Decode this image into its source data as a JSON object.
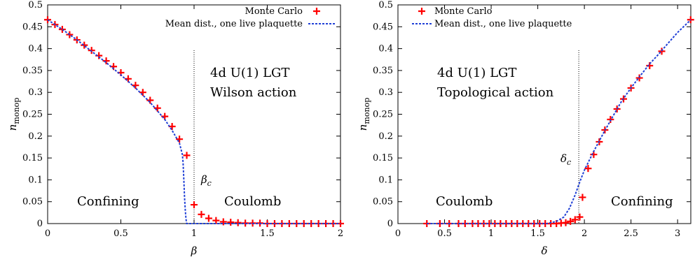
{
  "chart_data": [
    {
      "type": "line",
      "xlabel": "β",
      "ylabel": "n_monop",
      "xlim": [
        0,
        2
      ],
      "ylim": [
        0,
        0.5
      ],
      "x_ticks": [
        "0",
        "0.5",
        "1",
        "1.5",
        "2"
      ],
      "y_ticks": [
        "0",
        "0.05",
        "0.1",
        "0.15",
        "0.2",
        "0.25",
        "0.3",
        "0.35",
        "0.4",
        "0.45",
        "0.5"
      ],
      "grid": false,
      "legend_position": "top-right",
      "legend": [
        "Monte Carlo",
        "Mean dist., one live plaquette"
      ],
      "annotations": {
        "model_line1": "4d U(1) LGT",
        "model_line2": "Wilson action",
        "phase_left": "Confining",
        "phase_right": "Coulomb",
        "critical_label": "β_c"
      },
      "critical_x": 1.0,
      "series": [
        {
          "name": "Monte Carlo",
          "style": "markers",
          "color": "#ff0000",
          "points": [
            [
              0.0,
              0.466
            ],
            [
              0.05,
              0.455
            ],
            [
              0.1,
              0.444
            ],
            [
              0.15,
              0.432
            ],
            [
              0.2,
              0.42
            ],
            [
              0.25,
              0.408
            ],
            [
              0.3,
              0.396
            ],
            [
              0.35,
              0.384
            ],
            [
              0.4,
              0.372
            ],
            [
              0.45,
              0.359
            ],
            [
              0.5,
              0.345
            ],
            [
              0.55,
              0.331
            ],
            [
              0.6,
              0.316
            ],
            [
              0.65,
              0.3
            ],
            [
              0.7,
              0.282
            ],
            [
              0.75,
              0.264
            ],
            [
              0.8,
              0.245
            ],
            [
              0.85,
              0.222
            ],
            [
              0.9,
              0.193
            ],
            [
              0.95,
              0.156
            ],
            [
              1.0,
              0.043
            ],
            [
              1.05,
              0.021
            ],
            [
              1.1,
              0.012
            ],
            [
              1.15,
              0.007
            ],
            [
              1.2,
              0.004
            ],
            [
              1.25,
              0.003
            ],
            [
              1.3,
              0.002
            ],
            [
              1.35,
              0.001
            ],
            [
              1.4,
              0.001
            ],
            [
              1.45,
              0.001
            ],
            [
              1.5,
              0.0
            ],
            [
              1.55,
              0.0
            ],
            [
              1.6,
              0.0
            ],
            [
              1.65,
              0.0
            ],
            [
              1.7,
              0.0
            ],
            [
              1.75,
              0.0
            ],
            [
              1.8,
              0.0
            ],
            [
              1.85,
              0.0
            ],
            [
              1.9,
              0.0
            ],
            [
              1.95,
              0.0
            ],
            [
              2.0,
              0.0
            ]
          ]
        },
        {
          "name": "Mean dist., one live plaquette",
          "style": "dotted-line",
          "color": "#1f3fd6",
          "points": [
            [
              0.0,
              0.466
            ],
            [
              0.1,
              0.444
            ],
            [
              0.2,
              0.42
            ],
            [
              0.3,
              0.394
            ],
            [
              0.4,
              0.368
            ],
            [
              0.5,
              0.34
            ],
            [
              0.6,
              0.31
            ],
            [
              0.7,
              0.277
            ],
            [
              0.8,
              0.238
            ],
            [
              0.85,
              0.213
            ],
            [
              0.9,
              0.184
            ],
            [
              0.92,
              0.158
            ],
            [
              0.925,
              0.14
            ],
            [
              0.93,
              0.1
            ],
            [
              0.935,
              0.06
            ],
            [
              0.94,
              0.03
            ],
            [
              0.945,
              0.01
            ],
            [
              0.95,
              0.0
            ],
            [
              2.0,
              0.0
            ]
          ]
        }
      ]
    },
    {
      "type": "line",
      "xlabel": "δ",
      "ylabel": "n_monop",
      "xlim": [
        0,
        3.1416
      ],
      "ylim": [
        0,
        0.5
      ],
      "x_ticks": [
        "0",
        "0.5",
        "1",
        "1.5",
        "2",
        "2.5",
        "3"
      ],
      "y_ticks": [
        "0",
        "0.05",
        "0.1",
        "0.15",
        "0.2",
        "0.25",
        "0.3",
        "0.35",
        "0.4",
        "0.45",
        "0.5"
      ],
      "grid": false,
      "legend_position": "top-left",
      "legend": [
        "Monte Carlo",
        "Mean dist., one live plaquette"
      ],
      "annotations": {
        "model_line1": "4d U(1) LGT",
        "model_line2": "Topological action",
        "phase_left": "Coulomb",
        "phase_right": "Confining",
        "critical_label": "δ_c"
      },
      "critical_x": 1.94,
      "series": [
        {
          "name": "Monte Carlo",
          "style": "markers",
          "color": "#ff0000",
          "points": [
            [
              0.31,
              0.0
            ],
            [
              0.45,
              0.0
            ],
            [
              0.55,
              0.0
            ],
            [
              0.65,
              0.0
            ],
            [
              0.72,
              0.0
            ],
            [
              0.8,
              0.0
            ],
            [
              0.86,
              0.0
            ],
            [
              0.92,
              0.0
            ],
            [
              0.98,
              0.0
            ],
            [
              1.04,
              0.0
            ],
            [
              1.1,
              0.0
            ],
            [
              1.16,
              0.0
            ],
            [
              1.22,
              0.0
            ],
            [
              1.28,
              0.0
            ],
            [
              1.34,
              0.0
            ],
            [
              1.4,
              0.0
            ],
            [
              1.46,
              0.0
            ],
            [
              1.52,
              0.0
            ],
            [
              1.58,
              0.0
            ],
            [
              1.64,
              0.0
            ],
            [
              1.7,
              0.0
            ],
            [
              1.75,
              0.001
            ],
            [
              1.8,
              0.002
            ],
            [
              1.85,
              0.005
            ],
            [
              1.9,
              0.009
            ],
            [
              1.95,
              0.015
            ],
            [
              1.98,
              0.06
            ],
            [
              2.04,
              0.126
            ],
            [
              2.1,
              0.158
            ],
            [
              2.16,
              0.187
            ],
            [
              2.22,
              0.214
            ],
            [
              2.28,
              0.238
            ],
            [
              2.35,
              0.262
            ],
            [
              2.42,
              0.285
            ],
            [
              2.5,
              0.31
            ],
            [
              2.59,
              0.333
            ],
            [
              2.7,
              0.361
            ],
            [
              2.83,
              0.394
            ],
            [
              3.14,
              0.466
            ]
          ]
        },
        {
          "name": "Mean dist., one live plaquette",
          "style": "dotted-line",
          "color": "#1f3fd6",
          "points": [
            [
              0.31,
              0.0
            ],
            [
              1.5,
              0.0
            ],
            [
              1.6,
              0.0
            ],
            [
              1.7,
              0.005
            ],
            [
              1.78,
              0.015
            ],
            [
              1.84,
              0.035
            ],
            [
              1.9,
              0.065
            ],
            [
              1.95,
              0.095
            ],
            [
              2.0,
              0.122
            ],
            [
              2.1,
              0.165
            ],
            [
              2.2,
              0.205
            ],
            [
              2.3,
              0.243
            ],
            [
              2.4,
              0.28
            ],
            [
              2.5,
              0.31
            ],
            [
              2.6,
              0.338
            ],
            [
              2.7,
              0.365
            ],
            [
              2.8,
              0.388
            ],
            [
              2.9,
              0.413
            ],
            [
              3.0,
              0.437
            ],
            [
              3.1416,
              0.466
            ]
          ]
        }
      ]
    }
  ],
  "colors": {
    "monte_carlo": "#ff0000",
    "mean_dist": "#1f3fd6"
  }
}
